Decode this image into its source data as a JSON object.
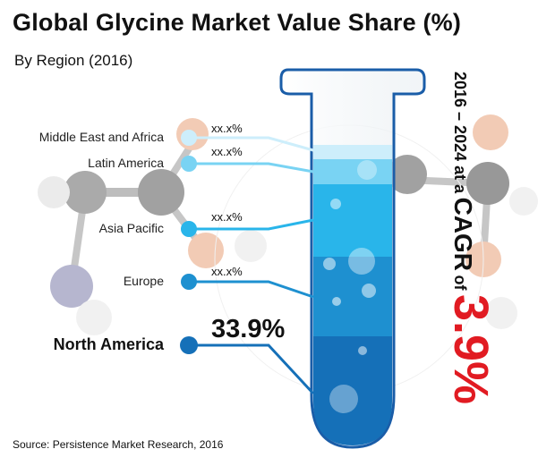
{
  "title": "Global Glycine Market Value Share (%)",
  "subtitle": "By Region (2016)",
  "source": "Source: Persistence Market Research, 2016",
  "cagr": {
    "prefix": "2016 – 2024 at a",
    "word": "CAGR",
    "of": "of",
    "value": "3.9%"
  },
  "chart_data": {
    "type": "bar",
    "title": "Global Glycine Market Value Share (%)",
    "subtitle": "By Region (2016)",
    "categories": [
      "Middle East and Africa",
      "Latin America",
      "Asia Pacific",
      "Europe",
      "North America"
    ],
    "value_labels": [
      "xx.x%",
      "xx.x%",
      "xx.x%",
      "xx.x%",
      "33.9%"
    ],
    "values": [
      null,
      null,
      null,
      null,
      33.9
    ],
    "unit": "%",
    "colors": [
      "#cdeefb",
      "#79d3f3",
      "#29b5ea",
      "#1e90d0",
      "#1570b8"
    ],
    "annotation": "2016 – 2024 at a CAGR of 3.9%"
  }
}
